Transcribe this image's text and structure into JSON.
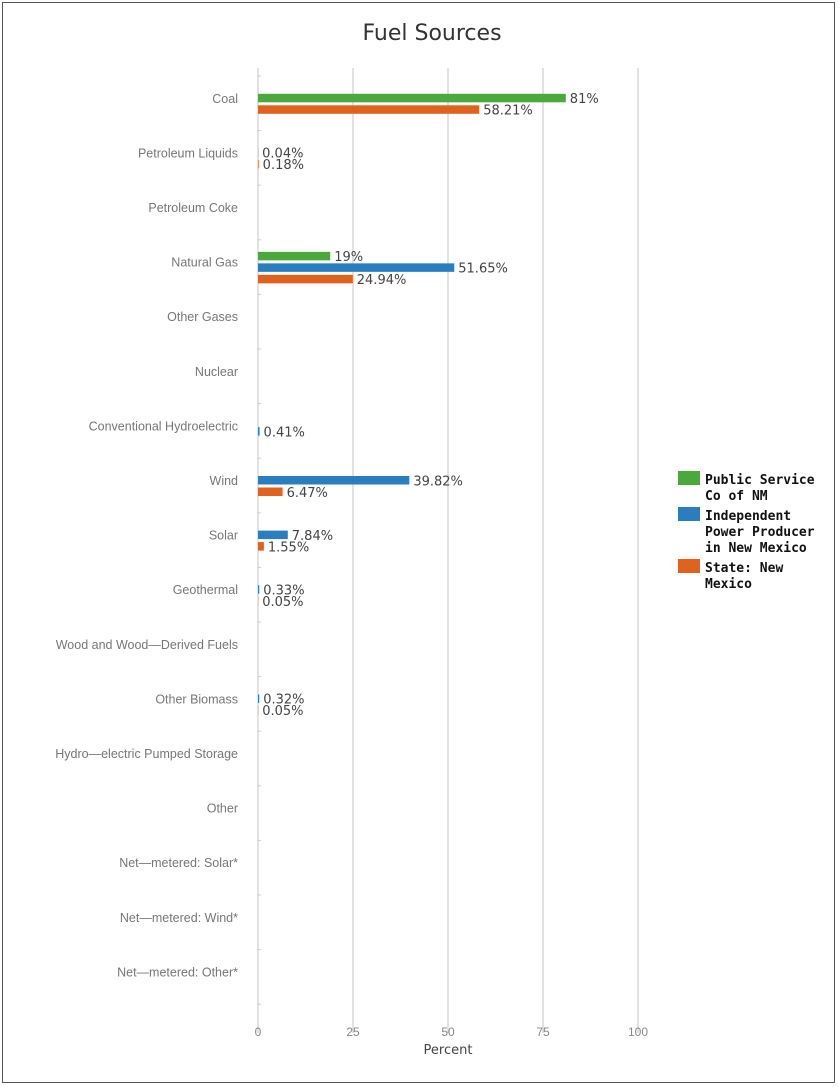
{
  "chart_data": {
    "type": "bar",
    "orientation": "horizontal",
    "title": "Fuel Sources",
    "xlabel": "Percent",
    "ylabel": "",
    "xlim": [
      0,
      100
    ],
    "xticks": [
      "0",
      "25",
      "50",
      "75",
      "100"
    ],
    "grid": true,
    "legend_position": "right",
    "categories": [
      "Coal",
      "Petroleum Liquids",
      "Petroleum Coke",
      "Natural Gas",
      "Other Gases",
      "Nuclear",
      "Conventional Hydroelectric",
      "Wind",
      "Solar",
      "Geothermal",
      "Wood and Wood—Derived Fuels",
      "Other Biomass",
      "Hydro—electric Pumped Storage",
      "Other",
      "Net—metered: Solar*",
      "Net—metered: Wind*",
      "Net—metered: Other*"
    ],
    "series": [
      {
        "name": "Public Service Co of NM",
        "legend_lines": [
          "Public Service",
          "Co of NM"
        ],
        "color": "#4aa83c",
        "values": [
          81,
          null,
          null,
          19,
          null,
          null,
          null,
          null,
          null,
          null,
          null,
          null,
          null,
          null,
          null,
          null,
          null
        ],
        "labels": [
          "81%",
          null,
          null,
          "19%",
          null,
          null,
          null,
          null,
          null,
          null,
          null,
          null,
          null,
          null,
          null,
          null,
          null
        ]
      },
      {
        "name": "Independent Power Producer in New Mexico",
        "legend_lines": [
          "Independent",
          "Power Producer",
          "in New Mexico"
        ],
        "color": "#2a7ec0",
        "values": [
          null,
          0.04,
          null,
          51.65,
          null,
          null,
          0.41,
          39.82,
          7.84,
          0.33,
          null,
          0.32,
          null,
          null,
          null,
          null,
          null
        ],
        "labels": [
          null,
          "0.04%",
          null,
          "51.65%",
          null,
          null,
          "0.41%",
          "39.82%",
          "7.84%",
          "0.33%",
          null,
          "0.32%",
          null,
          null,
          null,
          null,
          null
        ]
      },
      {
        "name": "State: New Mexico",
        "legend_lines": [
          "State: New",
          "Mexico"
        ],
        "color": "#e0621f",
        "values": [
          58.21,
          0.18,
          null,
          24.94,
          null,
          null,
          null,
          6.47,
          1.55,
          0.05,
          null,
          0.05,
          null,
          null,
          null,
          null,
          null
        ],
        "labels": [
          "58.21%",
          "0.18%",
          null,
          "24.94%",
          null,
          null,
          null,
          "6.47%",
          "1.55%",
          "0.05%",
          null,
          "0.05%",
          null,
          null,
          null,
          null,
          null
        ]
      }
    ]
  }
}
